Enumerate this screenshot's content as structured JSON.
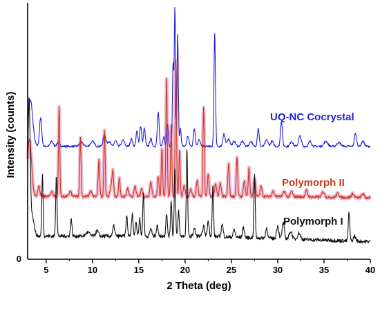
{
  "chart_data": {
    "type": "line",
    "xlabel": "2 Theta (deg)",
    "ylabel": "Intensity (counts)",
    "xlim": [
      3,
      40
    ],
    "ylim": [
      0,
      100
    ],
    "x_ticks": [
      "5",
      "10",
      "15",
      "20",
      "25",
      "30",
      "35",
      "40"
    ],
    "y_ticks": [
      "0"
    ],
    "grid": false,
    "legend": "none",
    "series": [
      {
        "name": "UQ-NC Cocrystal",
        "color": "#1f1fe0",
        "baseline": 44,
        "noise": 0.4,
        "peaks": [
          [
            3.3,
            18,
            0.25
          ],
          [
            4.4,
            11,
            0.12
          ],
          [
            5.6,
            2,
            0.15
          ],
          [
            6.3,
            1.5,
            0.15
          ],
          [
            8.8,
            1.5,
            0.2
          ],
          [
            10.0,
            2,
            0.2
          ],
          [
            11.3,
            4.5,
            0.15
          ],
          [
            11.8,
            2,
            0.15
          ],
          [
            12.5,
            2,
            0.15
          ],
          [
            13.3,
            2.5,
            0.15
          ],
          [
            14.2,
            3,
            0.12
          ],
          [
            14.8,
            6,
            0.1
          ],
          [
            15.2,
            8,
            0.1
          ],
          [
            15.6,
            7,
            0.1
          ],
          [
            16.3,
            3,
            0.12
          ],
          [
            17.1,
            13,
            0.1
          ],
          [
            17.7,
            4,
            0.1
          ],
          [
            18.1,
            9,
            0.08
          ],
          [
            18.7,
            32,
            0.07
          ],
          [
            18.9,
            54,
            0.07
          ],
          [
            19.2,
            44,
            0.07
          ],
          [
            19.5,
            7,
            0.08
          ],
          [
            20.3,
            4,
            0.12
          ],
          [
            21.0,
            7,
            0.1
          ],
          [
            21.5,
            3,
            0.12
          ],
          [
            23.2,
            44,
            0.08
          ],
          [
            24.2,
            5,
            0.12
          ],
          [
            24.7,
            3,
            0.15
          ],
          [
            25.3,
            2,
            0.15
          ],
          [
            26.2,
            2,
            0.15
          ],
          [
            27.1,
            2,
            0.15
          ],
          [
            27.9,
            7,
            0.1
          ],
          [
            28.8,
            2.5,
            0.15
          ],
          [
            29.4,
            2,
            0.15
          ],
          [
            30.4,
            10,
            0.1
          ],
          [
            31.5,
            2,
            0.15
          ],
          [
            32.4,
            4,
            0.15
          ],
          [
            33.5,
            2,
            0.15
          ],
          [
            35.2,
            2,
            0.2
          ],
          [
            36.6,
            1.5,
            0.2
          ],
          [
            38.4,
            5,
            0.12
          ],
          [
            39.2,
            2,
            0.15
          ]
        ]
      },
      {
        "name": "Polymorph II",
        "color": "#c8391f",
        "highlight": "#f2bcd4",
        "baseline": 24.5,
        "noise": 0.5,
        "peaks": [
          [
            3.2,
            22,
            0.22
          ],
          [
            4.2,
            4,
            0.12
          ],
          [
            5.6,
            2,
            0.12
          ],
          [
            6.4,
            35,
            0.07
          ],
          [
            7.6,
            2,
            0.12
          ],
          [
            8.7,
            23,
            0.07
          ],
          [
            9.8,
            2,
            0.12
          ],
          [
            10.7,
            14,
            0.08
          ],
          [
            11.3,
            26,
            0.07
          ],
          [
            12.0,
            4,
            0.1
          ],
          [
            12.2,
            10,
            0.08
          ],
          [
            12.9,
            7,
            0.08
          ],
          [
            13.8,
            3,
            0.1
          ],
          [
            14.6,
            4,
            0.1
          ],
          [
            15.3,
            3,
            0.1
          ],
          [
            16.3,
            6,
            0.1
          ],
          [
            17.1,
            8,
            0.08
          ],
          [
            17.5,
            19,
            0.07
          ],
          [
            18.0,
            47,
            0.07
          ],
          [
            18.5,
            28,
            0.07
          ],
          [
            19.0,
            53,
            0.07
          ],
          [
            19.4,
            18,
            0.07
          ],
          [
            19.9,
            4,
            0.1
          ],
          [
            20.6,
            3,
            0.1
          ],
          [
            21.3,
            6,
            0.1
          ],
          [
            22.0,
            35,
            0.07
          ],
          [
            22.5,
            9,
            0.08
          ],
          [
            23.3,
            5,
            0.1
          ],
          [
            23.8,
            5,
            0.1
          ],
          [
            24.7,
            13,
            0.08
          ],
          [
            25.6,
            15,
            0.08
          ],
          [
            26.4,
            6,
            0.1
          ],
          [
            26.9,
            11,
            0.08
          ],
          [
            27.5,
            7,
            0.1
          ],
          [
            28.2,
            4,
            0.1
          ],
          [
            29.5,
            2,
            0.12
          ],
          [
            30.7,
            2,
            0.12
          ],
          [
            31.5,
            2,
            0.12
          ],
          [
            33.1,
            2.5,
            0.12
          ],
          [
            34.9,
            2,
            0.15
          ],
          [
            36.5,
            1.5,
            0.15
          ],
          [
            38.1,
            1.5,
            0.15
          ],
          [
            39.2,
            1.5,
            0.15
          ]
        ]
      },
      {
        "name": "Polymorph I",
        "color": "#111111",
        "baseline": 9,
        "noise": 0.7,
        "peaks": [
          [
            3.15,
            52,
            0.12
          ],
          [
            3.5,
            8,
            0.2
          ],
          [
            4.6,
            24,
            0.07
          ],
          [
            6.1,
            24,
            0.07
          ],
          [
            7.7,
            7,
            0.08
          ],
          [
            9.5,
            1.5,
            0.2
          ],
          [
            10.5,
            2,
            0.15
          ],
          [
            12.3,
            4,
            0.1
          ],
          [
            13.7,
            8,
            0.08
          ],
          [
            14.3,
            9,
            0.08
          ],
          [
            14.7,
            6,
            0.08
          ],
          [
            15.1,
            7,
            0.08
          ],
          [
            15.5,
            17,
            0.07
          ],
          [
            16.3,
            3,
            0.1
          ],
          [
            17.0,
            4,
            0.1
          ],
          [
            18.0,
            9,
            0.08
          ],
          [
            18.5,
            14,
            0.07
          ],
          [
            18.9,
            27,
            0.07
          ],
          [
            19.3,
            10,
            0.07
          ],
          [
            20.2,
            34,
            0.07
          ],
          [
            21.0,
            3,
            0.1
          ],
          [
            22.0,
            4,
            0.1
          ],
          [
            22.5,
            6,
            0.1
          ],
          [
            23.0,
            20,
            0.07
          ],
          [
            24.0,
            5,
            0.1
          ],
          [
            25.3,
            3,
            0.1
          ],
          [
            26.3,
            4,
            0.1
          ],
          [
            27.5,
            25,
            0.07
          ],
          [
            28.8,
            4,
            0.1
          ],
          [
            30.0,
            5,
            0.12
          ],
          [
            30.6,
            6,
            0.12
          ],
          [
            31.4,
            3,
            0.15
          ],
          [
            32.3,
            2.5,
            0.15
          ],
          [
            37.7,
            11,
            0.08
          ],
          [
            38.3,
            2,
            0.12
          ]
        ]
      }
    ]
  }
}
